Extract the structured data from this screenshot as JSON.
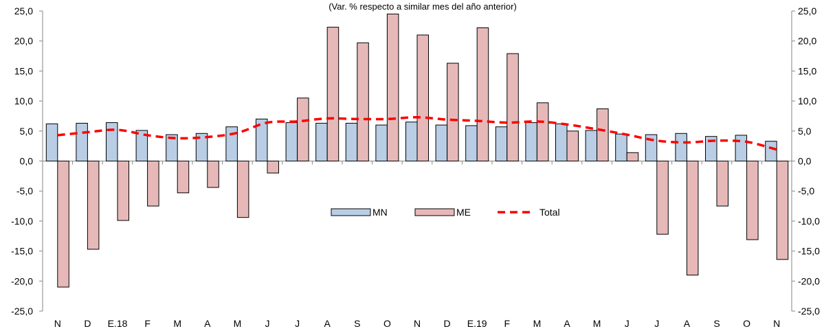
{
  "chart_data": {
    "type": "bar",
    "subtitle": "(Var. % respecto a similar mes del año anterior)",
    "categories": [
      "N",
      "D",
      "E.18",
      "F",
      "M",
      "A",
      "M",
      "J",
      "J",
      "A",
      "S",
      "O",
      "N",
      "D",
      "E.19",
      "F",
      "M",
      "A",
      "M",
      "J",
      "J",
      "A",
      "S",
      "O",
      "N"
    ],
    "series": [
      {
        "name": "MN",
        "type": "bar",
        "color": "#b9cde5",
        "values": [
          6.2,
          6.3,
          6.4,
          5.1,
          4.4,
          4.6,
          5.7,
          7.0,
          6.4,
          6.3,
          6.3,
          6.0,
          6.5,
          6.0,
          5.9,
          5.7,
          6.4,
          6.2,
          5.1,
          4.5,
          4.4,
          4.6,
          4.1,
          4.3,
          3.3
        ]
      },
      {
        "name": "ME",
        "type": "bar",
        "color": "#e6b9b8",
        "values": [
          -21.0,
          -14.7,
          -9.9,
          -7.5,
          -5.3,
          -4.4,
          -9.4,
          -2.0,
          10.5,
          22.3,
          19.7,
          24.5,
          21.0,
          16.3,
          22.2,
          17.9,
          9.7,
          5.0,
          8.7,
          1.4,
          -12.2,
          -19.0,
          -7.5,
          -13.1,
          -16.4
        ]
      },
      {
        "name": "Total",
        "type": "line",
        "style": "dashed",
        "color": "#ff0000",
        "values": [
          4.3,
          4.8,
          5.2,
          4.3,
          3.8,
          4.0,
          4.7,
          6.4,
          6.6,
          7.1,
          7.0,
          7.0,
          7.3,
          6.9,
          6.7,
          6.4,
          6.6,
          6.1,
          5.3,
          4.4,
          3.4,
          3.1,
          3.4,
          3.2,
          1.9
        ]
      }
    ],
    "y_ticks": [
      "25,0",
      "20,0",
      "15,0",
      "10,0",
      "5,0",
      "0,0",
      "-5,0",
      "-10,0",
      "-15,0",
      "-20,0",
      "-25,0"
    ],
    "ylim": [
      -25,
      25
    ],
    "y_axis_both_sides": true,
    "grid": false,
    "legend_position": "center"
  }
}
